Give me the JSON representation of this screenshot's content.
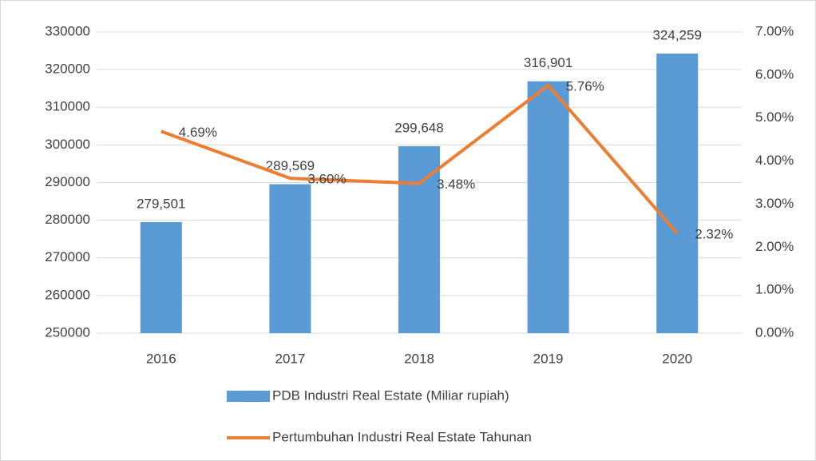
{
  "chart_data": {
    "type": "bar",
    "categories": [
      "2016",
      "2017",
      "2018",
      "2019",
      "2020"
    ],
    "series": [
      {
        "name": "PDB Industri Real Estate (Miliar rupiah)",
        "type": "bar",
        "color": "#5b9bd5",
        "values": [
          279501,
          289569,
          299648,
          316901,
          324259
        ],
        "value_labels": [
          "279,501",
          "289,569",
          "299,648",
          "316,901",
          "324,259"
        ]
      },
      {
        "name": "Pertumbuhan Industri Real Estate Tahunan",
        "type": "line",
        "axis": "y2",
        "color": "#ed7d31",
        "values": [
          4.69,
          3.6,
          3.48,
          5.76,
          2.32
        ],
        "value_labels": [
          "4.69%",
          "3.60%",
          "3.48%",
          "5.76%",
          "2.32%"
        ]
      }
    ],
    "ylim": [
      250000,
      330000
    ],
    "yticks": [
      250000,
      260000,
      270000,
      280000,
      290000,
      300000,
      310000,
      320000,
      330000
    ],
    "y2lim": [
      0,
      7
    ],
    "y2ticks": [
      {
        "value": 0,
        "label": "0.00%"
      },
      {
        "value": 1,
        "label": "1.00%"
      },
      {
        "value": 2,
        "label": "2.00%"
      },
      {
        "value": 3,
        "label": "3.00%"
      },
      {
        "value": 4,
        "label": "4.00%"
      },
      {
        "value": 5,
        "label": "5.00%"
      },
      {
        "value": 6,
        "label": "6.00%"
      },
      {
        "value": 7,
        "label": "7.00%"
      }
    ],
    "grid": true,
    "legend": "bottom"
  }
}
